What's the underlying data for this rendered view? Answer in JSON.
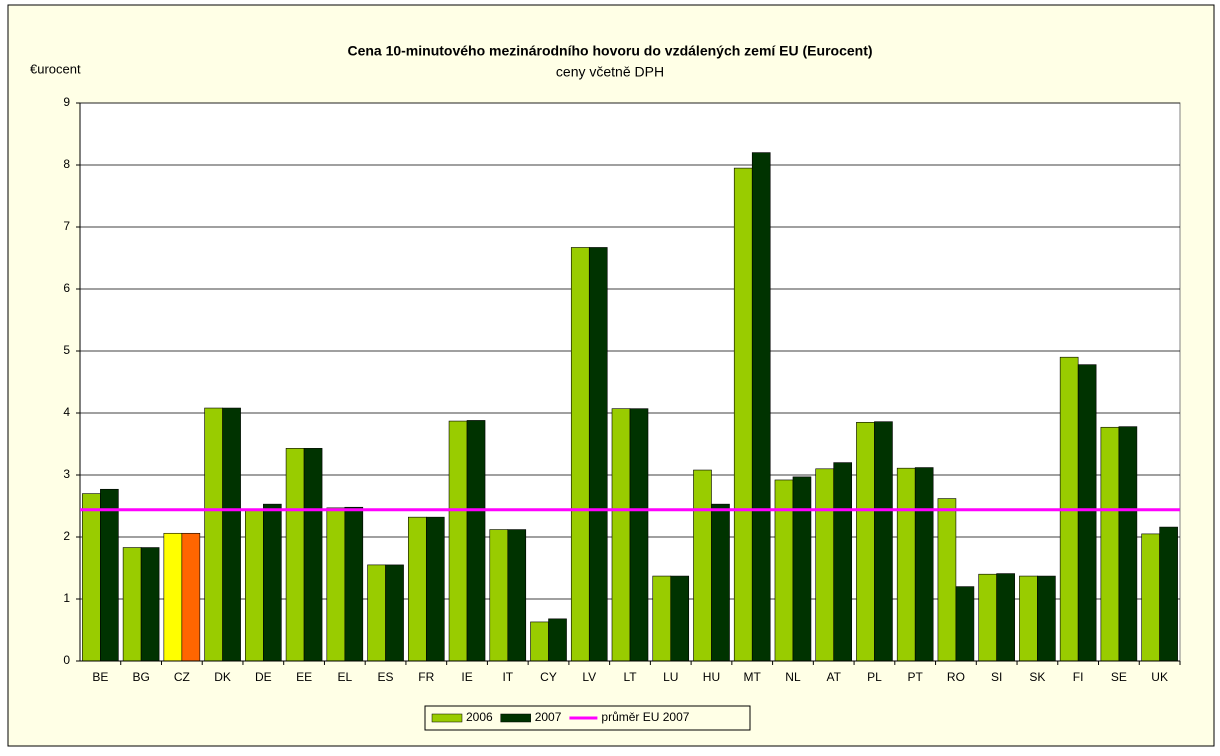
{
  "chart_data": {
    "type": "bar",
    "title": "Cena 10-minutového mezinárodního hovoru do vzdálených zemí EU (Eurocent)",
    "subtitle": "ceny včetně DPH",
    "y_label": "€urocent",
    "categories": [
      "BE",
      "BG",
      "CZ",
      "DK",
      "DE",
      "EE",
      "EL",
      "ES",
      "FR",
      "IE",
      "IT",
      "CY",
      "LV",
      "LT",
      "LU",
      "HU",
      "MT",
      "NL",
      "AT",
      "PL",
      "PT",
      "RO",
      "SI",
      "SK",
      "FI",
      "SE",
      "UK"
    ],
    "series": [
      {
        "name": "2006",
        "color": "#99cc00",
        "highlight_colors": {
          "CZ": "#ffff00"
        },
        "values": [
          2.7,
          1.83,
          2.06,
          4.08,
          2.45,
          3.43,
          2.47,
          1.55,
          2.32,
          3.87,
          2.12,
          0.63,
          6.67,
          4.07,
          1.37,
          3.08,
          7.95,
          2.92,
          3.1,
          3.85,
          3.11,
          2.62,
          1.4,
          1.37,
          4.9,
          3.77,
          2.05
        ]
      },
      {
        "name": "2007",
        "color": "#003300",
        "highlight_colors": {
          "CZ": "#ff6600"
        },
        "values": [
          2.77,
          1.83,
          2.06,
          4.08,
          2.53,
          3.43,
          2.48,
          1.55,
          2.32,
          3.88,
          2.12,
          0.68,
          6.67,
          4.07,
          1.37,
          2.53,
          8.2,
          2.97,
          3.2,
          3.86,
          3.12,
          1.2,
          1.41,
          1.37,
          4.78,
          3.78,
          2.16
        ]
      },
      {
        "name": "průměr EU 2007",
        "color": "#ff00ff",
        "type": "line",
        "value": 2.44
      }
    ],
    "ylim": [
      0,
      9
    ],
    "yticks": [
      0,
      1,
      2,
      3,
      4,
      5,
      6,
      7,
      8,
      9
    ],
    "grid": true,
    "legend": "bottom"
  }
}
